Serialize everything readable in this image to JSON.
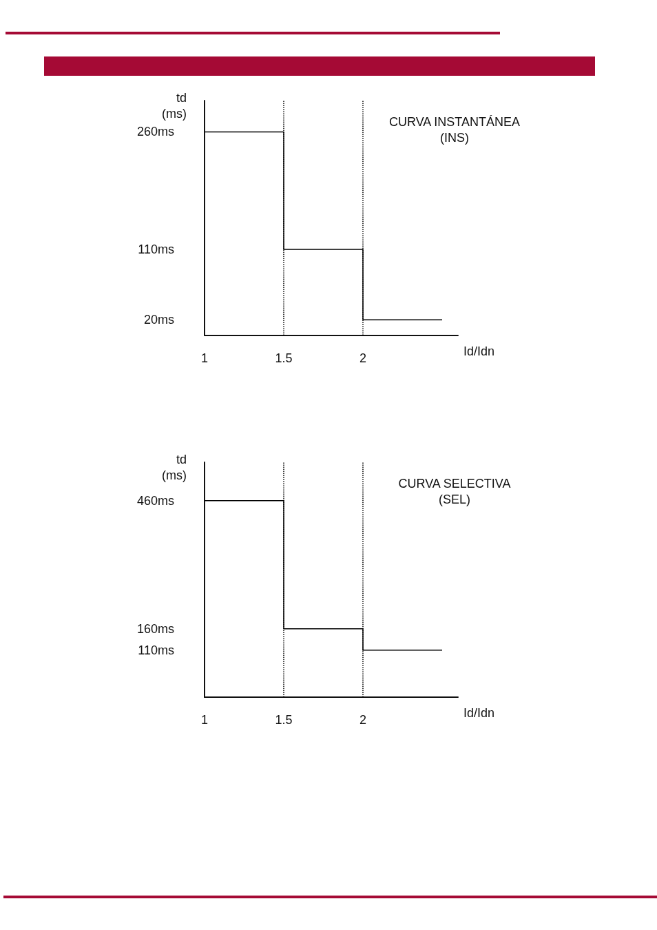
{
  "chart_data": [
    {
      "type": "step",
      "title": "CURVA INSTANTÁNEA\n(INS)",
      "xlabel": "Id/Idn",
      "ylabel": "td\n(ms)",
      "x": [
        1,
        1.5,
        2,
        2.5
      ],
      "values": [
        260,
        110,
        20,
        20
      ],
      "color": "#000000",
      "xlim": [
        1,
        2.6
      ],
      "xticks": [
        1,
        1.5,
        2
      ],
      "ylim": [
        0,
        300
      ],
      "yticks": [
        {
          "value": 20,
          "label": "20ms"
        },
        {
          "value": 110,
          "label": "110ms"
        },
        {
          "value": 260,
          "label": "260ms"
        }
      ],
      "ref_lines": [
        {
          "axis": "x",
          "value": 1.5,
          "line_style": "dotted",
          "color": "#000000"
        },
        {
          "axis": "x",
          "value": 2,
          "line_style": "dotted",
          "color": "#000000"
        }
      ],
      "grid": false,
      "marker": "none",
      "line_style": "solid"
    },
    {
      "type": "step",
      "title": "CURVA SELECTIVA\n(SEL)",
      "xlabel": "Id/Idn",
      "ylabel": "td\n(ms)",
      "x": [
        1,
        1.5,
        2,
        2.5
      ],
      "values": [
        460,
        160,
        110,
        110
      ],
      "color": "#000000",
      "xlim": [
        1,
        2.6
      ],
      "xticks": [
        1,
        1.5,
        2
      ],
      "ylim": [
        0,
        550
      ],
      "yticks": [
        {
          "value": 110,
          "label": "110ms"
        },
        {
          "value": 160,
          "label": "160ms"
        },
        {
          "value": 460,
          "label": "460ms"
        }
      ],
      "ref_lines": [
        {
          "axis": "x",
          "value": 1.5,
          "line_style": "dotted",
          "color": "#000000"
        },
        {
          "axis": "x",
          "value": 2,
          "line_style": "dotted",
          "color": "#000000"
        }
      ],
      "grid": false,
      "marker": "none",
      "line_style": "solid"
    }
  ]
}
